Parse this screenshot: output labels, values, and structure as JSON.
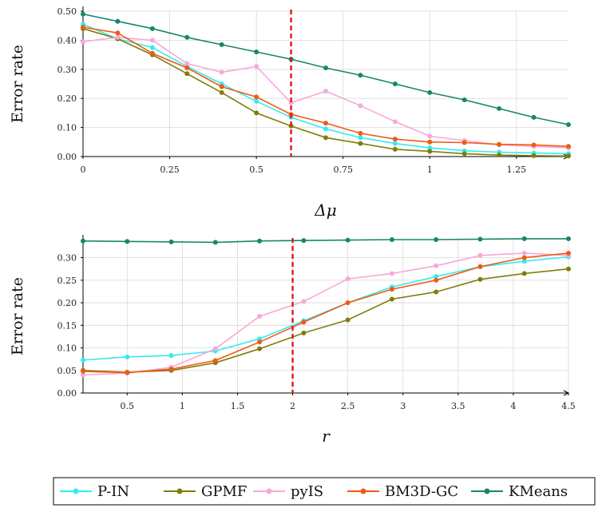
{
  "chart_data": [
    {
      "type": "line",
      "xlabel": "Δμ",
      "ylabel": "Error rate",
      "xlim": [
        0,
        1.4
      ],
      "ylim": [
        0,
        0.5
      ],
      "xticks": [
        0,
        0.25,
        0.5,
        0.75,
        1,
        1.25
      ],
      "xtick_labels": [
        "0",
        "0.25",
        "0.5",
        "0.75",
        "1",
        "1.25"
      ],
      "yticks": [
        0,
        0.1,
        0.2,
        0.3,
        0.4,
        0.5
      ],
      "ytick_labels": [
        "0.00",
        "0.10",
        "0.20",
        "0.30",
        "0.40",
        "0.50"
      ],
      "grid": true,
      "vline": 0.6,
      "x": [
        0,
        0.1,
        0.2,
        0.3,
        0.4,
        0.5,
        0.6,
        0.7,
        0.8,
        0.9,
        1.0,
        1.1,
        1.2,
        1.3,
        1.4
      ],
      "series": [
        {
          "name": "P-IN",
          "values": [
            0.455,
            0.405,
            0.375,
            0.31,
            0.25,
            0.19,
            0.135,
            0.095,
            0.065,
            0.045,
            0.03,
            0.02,
            0.015,
            0.012,
            0.01
          ]
        },
        {
          "name": "GPMF",
          "values": [
            0.44,
            0.405,
            0.35,
            0.285,
            0.22,
            0.15,
            0.105,
            0.065,
            0.045,
            0.025,
            0.018,
            0.01,
            0.005,
            0.003,
            0.002
          ]
        },
        {
          "name": "pyIS",
          "values": [
            0.395,
            0.41,
            0.4,
            0.32,
            0.29,
            0.31,
            0.185,
            0.225,
            0.175,
            0.12,
            0.07,
            0.055,
            0.04,
            0.035,
            0.03
          ]
        },
        {
          "name": "BM3D-GC",
          "values": [
            0.445,
            0.425,
            0.355,
            0.305,
            0.24,
            0.205,
            0.145,
            0.115,
            0.08,
            0.06,
            0.05,
            0.048,
            0.042,
            0.04,
            0.035
          ]
        },
        {
          "name": "KMeans",
          "values": [
            0.49,
            0.465,
            0.44,
            0.41,
            0.385,
            0.36,
            0.335,
            0.305,
            0.28,
            0.25,
            0.22,
            0.195,
            0.165,
            0.135,
            0.11
          ]
        }
      ]
    },
    {
      "type": "line",
      "xlabel": "r",
      "ylabel": "Error rate",
      "xlim": [
        0.1,
        4.5
      ],
      "ylim": [
        0,
        0.34
      ],
      "xticks": [
        0.5,
        1,
        1.5,
        2,
        2.5,
        3,
        3.5,
        4,
        4.5
      ],
      "xtick_labels": [
        "0.5",
        "1",
        "1.5",
        "2",
        "2.5",
        "3",
        "3.5",
        "4",
        "4.5"
      ],
      "yticks": [
        0,
        0.05,
        0.1,
        0.15,
        0.2,
        0.25,
        0.3
      ],
      "ytick_labels": [
        "0.00",
        "0.05",
        "0.10",
        "0.15",
        "0.20",
        "0.25",
        "0.30"
      ],
      "grid": true,
      "vline": 2,
      "x": [
        0.1,
        0.5,
        0.9,
        1.3,
        1.7,
        2.1,
        2.5,
        2.9,
        3.3,
        3.7,
        4.1,
        4.5
      ],
      "series": [
        {
          "name": "P-IN",
          "values": [
            0.073,
            0.08,
            0.083,
            0.093,
            0.12,
            0.16,
            0.2,
            0.235,
            0.258,
            0.28,
            0.292,
            0.302
          ]
        },
        {
          "name": "GPMF",
          "values": [
            0.05,
            0.046,
            0.05,
            0.067,
            0.098,
            0.133,
            0.162,
            0.208,
            0.224,
            0.252,
            0.265,
            0.275
          ]
        },
        {
          "name": "pyIS",
          "values": [
            0.04,
            0.044,
            0.057,
            0.098,
            0.17,
            0.203,
            0.253,
            0.265,
            0.282,
            0.305,
            0.31,
            0.305
          ]
        },
        {
          "name": "BM3D-GC",
          "values": [
            0.048,
            0.045,
            0.053,
            0.072,
            0.113,
            0.157,
            0.2,
            0.23,
            0.25,
            0.28,
            0.3,
            0.31
          ]
        },
        {
          "name": "KMeans",
          "values": [
            0.337,
            0.336,
            0.335,
            0.334,
            0.337,
            0.338,
            0.339,
            0.34,
            0.34,
            0.341,
            0.342,
            0.342
          ]
        }
      ]
    }
  ],
  "legend": {
    "placement": "bottom-right",
    "items": [
      {
        "name": "P-IN",
        "color": "#33ecf0"
      },
      {
        "name": "GPMF",
        "color": "#807d0a"
      },
      {
        "name": "pyIS",
        "color": "#f7a8d8"
      },
      {
        "name": "BM3D-GC",
        "color": "#f05a14"
      },
      {
        "name": "KMeans",
        "color": "#16876a"
      }
    ]
  },
  "colors": {
    "P-IN": "#33ecf0",
    "GPMF": "#807d0a",
    "pyIS": "#f7a8d8",
    "BM3D-GC": "#f05a14",
    "KMeans": "#16876a",
    "vline": "#e0181e"
  }
}
